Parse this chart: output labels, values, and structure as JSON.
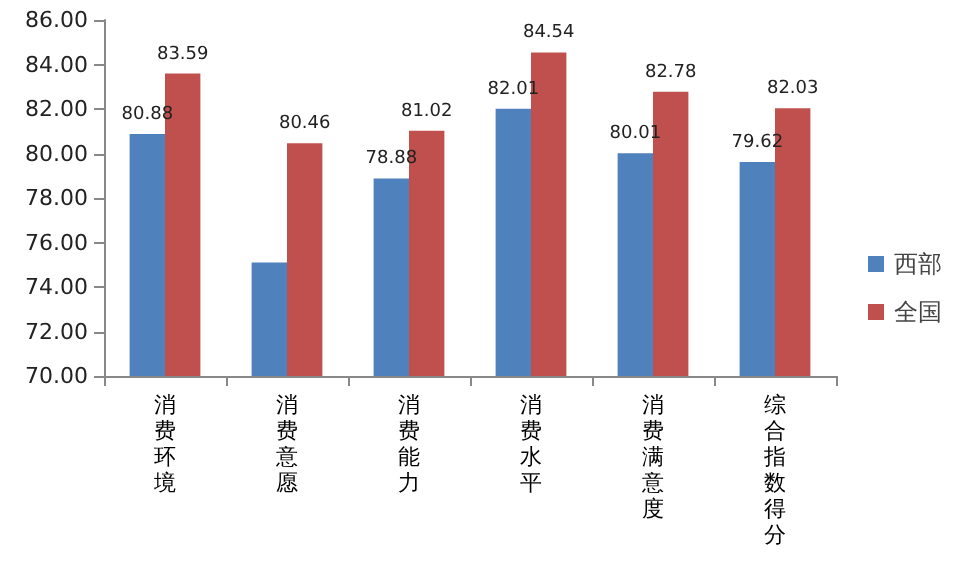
{
  "chart_data": {
    "type": "bar",
    "categories": [
      "消费环境",
      "消费意愿",
      "消费能力",
      "消费水平",
      "消费满意度",
      "综合指数得分"
    ],
    "series": [
      {
        "name": "西部",
        "color": "#4f81bd",
        "values": [
          80.88,
          75.1,
          78.88,
          82.01,
          80.01,
          79.62
        ],
        "value_labels": [
          "80.88",
          null,
          "78.88",
          "82.01",
          "80.01",
          "79.62"
        ]
      },
      {
        "name": "全国",
        "color": "#c0504d",
        "values": [
          83.59,
          80.46,
          81.02,
          84.54,
          82.78,
          82.03
        ],
        "value_labels": [
          "83.59",
          "80.46",
          "81.02",
          "84.54",
          "82.78",
          "82.03"
        ]
      }
    ],
    "ylim": [
      70,
      86
    ],
    "yticks": [
      {
        "value": 70,
        "label": "70.00"
      },
      {
        "value": 72,
        "label": "72.00"
      },
      {
        "value": 74,
        "label": "74.00"
      },
      {
        "value": 76,
        "label": "76.00"
      },
      {
        "value": 78,
        "label": "78.00"
      },
      {
        "value": 80,
        "label": "80.00"
      },
      {
        "value": 82,
        "label": "82.00"
      },
      {
        "value": 84,
        "label": "84.00"
      },
      {
        "value": 86,
        "label": "86.00"
      }
    ],
    "grid": false,
    "legend": "right"
  }
}
